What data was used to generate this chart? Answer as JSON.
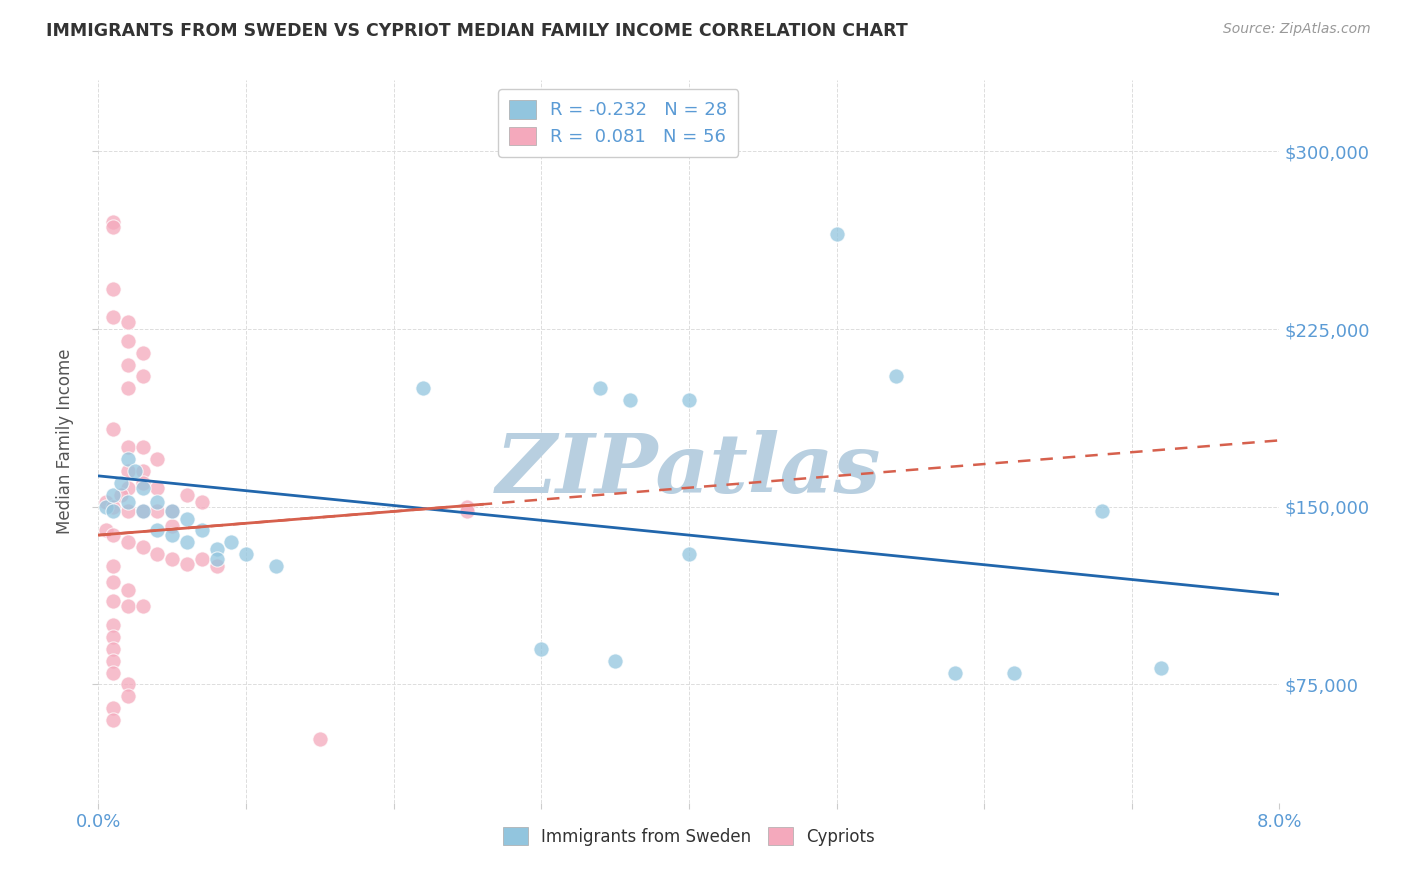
{
  "title": "IMMIGRANTS FROM SWEDEN VS CYPRIOT MEDIAN FAMILY INCOME CORRELATION CHART",
  "source": "Source: ZipAtlas.com",
  "ylabel": "Median Family Income",
  "y_ticks": [
    75000,
    150000,
    225000,
    300000
  ],
  "y_tick_labels": [
    "$75,000",
    "$150,000",
    "$225,000",
    "$300,000"
  ],
  "xmin": 0.0,
  "xmax": 0.08,
  "ymin": 25000,
  "ymax": 330000,
  "legend_r1_label": "R = -0.232",
  "legend_r1_n": "N = 28",
  "legend_r2_label": "R =  0.081",
  "legend_r2_n": "N = 56",
  "blue_color": "#92c5de",
  "pink_color": "#f4a9bc",
  "trend_blue_color": "#2166ac",
  "trend_pink_solid_color": "#d6604d",
  "trend_pink_dash_color": "#d6604d",
  "blue_scatter": [
    [
      0.0005,
      150000
    ],
    [
      0.001,
      155000
    ],
    [
      0.001,
      148000
    ],
    [
      0.0015,
      160000
    ],
    [
      0.002,
      170000
    ],
    [
      0.002,
      152000
    ],
    [
      0.0025,
      165000
    ],
    [
      0.003,
      158000
    ],
    [
      0.003,
      148000
    ],
    [
      0.004,
      152000
    ],
    [
      0.004,
      140000
    ],
    [
      0.005,
      148000
    ],
    [
      0.005,
      138000
    ],
    [
      0.006,
      145000
    ],
    [
      0.006,
      135000
    ],
    [
      0.007,
      140000
    ],
    [
      0.008,
      132000
    ],
    [
      0.008,
      128000
    ],
    [
      0.009,
      135000
    ],
    [
      0.01,
      130000
    ],
    [
      0.012,
      125000
    ],
    [
      0.022,
      200000
    ],
    [
      0.034,
      200000
    ],
    [
      0.036,
      195000
    ],
    [
      0.04,
      195000
    ],
    [
      0.05,
      265000
    ],
    [
      0.054,
      205000
    ],
    [
      0.068,
      148000
    ]
  ],
  "blue_scatter_outliers": [
    [
      0.03,
      90000
    ],
    [
      0.035,
      85000
    ],
    [
      0.04,
      130000
    ],
    [
      0.058,
      80000
    ],
    [
      0.062,
      80000
    ],
    [
      0.072,
      82000
    ]
  ],
  "pink_scatter": [
    [
      0.001,
      270000
    ],
    [
      0.001,
      268000
    ],
    [
      0.001,
      242000
    ],
    [
      0.001,
      230000
    ],
    [
      0.002,
      228000
    ],
    [
      0.002,
      220000
    ],
    [
      0.002,
      210000
    ],
    [
      0.002,
      200000
    ],
    [
      0.001,
      183000
    ],
    [
      0.002,
      175000
    ],
    [
      0.002,
      165000
    ],
    [
      0.002,
      158000
    ],
    [
      0.003,
      215000
    ],
    [
      0.003,
      205000
    ],
    [
      0.003,
      175000
    ],
    [
      0.003,
      165000
    ],
    [
      0.004,
      170000
    ],
    [
      0.0015,
      155000
    ],
    [
      0.003,
      160000
    ],
    [
      0.004,
      158000
    ],
    [
      0.0005,
      152000
    ],
    [
      0.001,
      150000
    ],
    [
      0.002,
      148000
    ],
    [
      0.003,
      148000
    ],
    [
      0.004,
      148000
    ],
    [
      0.005,
      148000
    ],
    [
      0.005,
      142000
    ],
    [
      0.006,
      155000
    ],
    [
      0.007,
      152000
    ],
    [
      0.0005,
      140000
    ],
    [
      0.001,
      138000
    ],
    [
      0.002,
      135000
    ],
    [
      0.003,
      133000
    ],
    [
      0.004,
      130000
    ],
    [
      0.005,
      128000
    ],
    [
      0.006,
      126000
    ],
    [
      0.007,
      128000
    ],
    [
      0.008,
      125000
    ],
    [
      0.001,
      125000
    ],
    [
      0.001,
      118000
    ],
    [
      0.002,
      115000
    ],
    [
      0.001,
      110000
    ],
    [
      0.002,
      108000
    ],
    [
      0.003,
      108000
    ],
    [
      0.001,
      100000
    ],
    [
      0.001,
      95000
    ],
    [
      0.001,
      90000
    ],
    [
      0.001,
      85000
    ],
    [
      0.001,
      80000
    ],
    [
      0.002,
      75000
    ],
    [
      0.002,
      70000
    ],
    [
      0.001,
      65000
    ],
    [
      0.001,
      60000
    ],
    [
      0.025,
      150000
    ],
    [
      0.025,
      148000
    ],
    [
      0.015,
      52000
    ]
  ],
  "watermark": "ZIPatlas",
  "watermark_color": "#b8cfe0",
  "background_color": "#ffffff",
  "grid_color": "#dddddd",
  "title_color": "#333333",
  "source_color": "#999999",
  "axis_color": "#5b9bd5",
  "tick_label_color": "#5b9bd5"
}
